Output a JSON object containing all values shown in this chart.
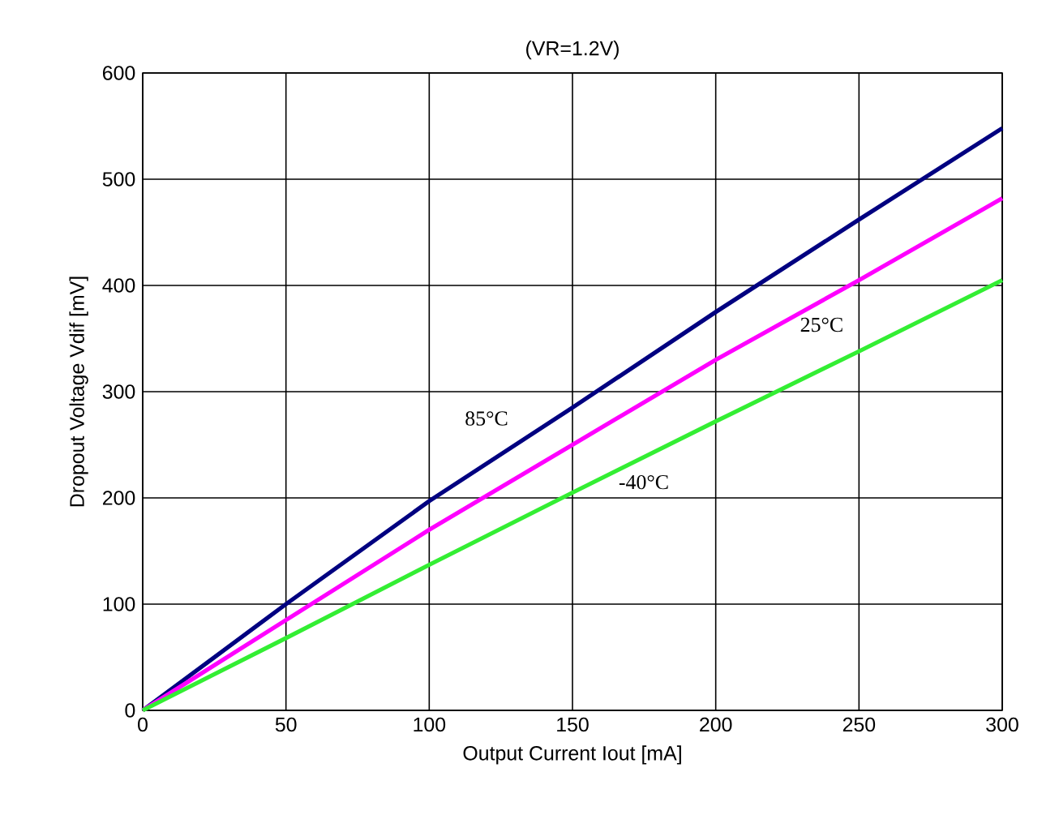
{
  "chart_data": {
    "type": "line",
    "title": "(VR=1.2V)",
    "xlabel": "Output Current Iout [mA]",
    "ylabel": "Dropout Voltage Vdif [mV]",
    "x": [
      0,
      50,
      100,
      150,
      200,
      250,
      300
    ],
    "series": [
      {
        "name": "85°C",
        "color": "#000080",
        "values": [
          0,
          100,
          197,
          285,
          375,
          462,
          548
        ]
      },
      {
        "name": "25°C",
        "color": "#ff00ff",
        "values": [
          0,
          85,
          170,
          250,
          330,
          405,
          482
        ]
      },
      {
        "name": "-40°C",
        "color": "#33ee33",
        "values": [
          0,
          68,
          137,
          205,
          272,
          338,
          405
        ]
      }
    ],
    "xlim": [
      0,
      300
    ],
    "ylim": [
      0,
      600
    ],
    "xticks": [
      0,
      50,
      100,
      150,
      200,
      250,
      300
    ],
    "yticks": [
      0,
      100,
      200,
      300,
      400,
      500,
      600
    ],
    "grid": true,
    "marker": "none",
    "line_style": "solid"
  }
}
